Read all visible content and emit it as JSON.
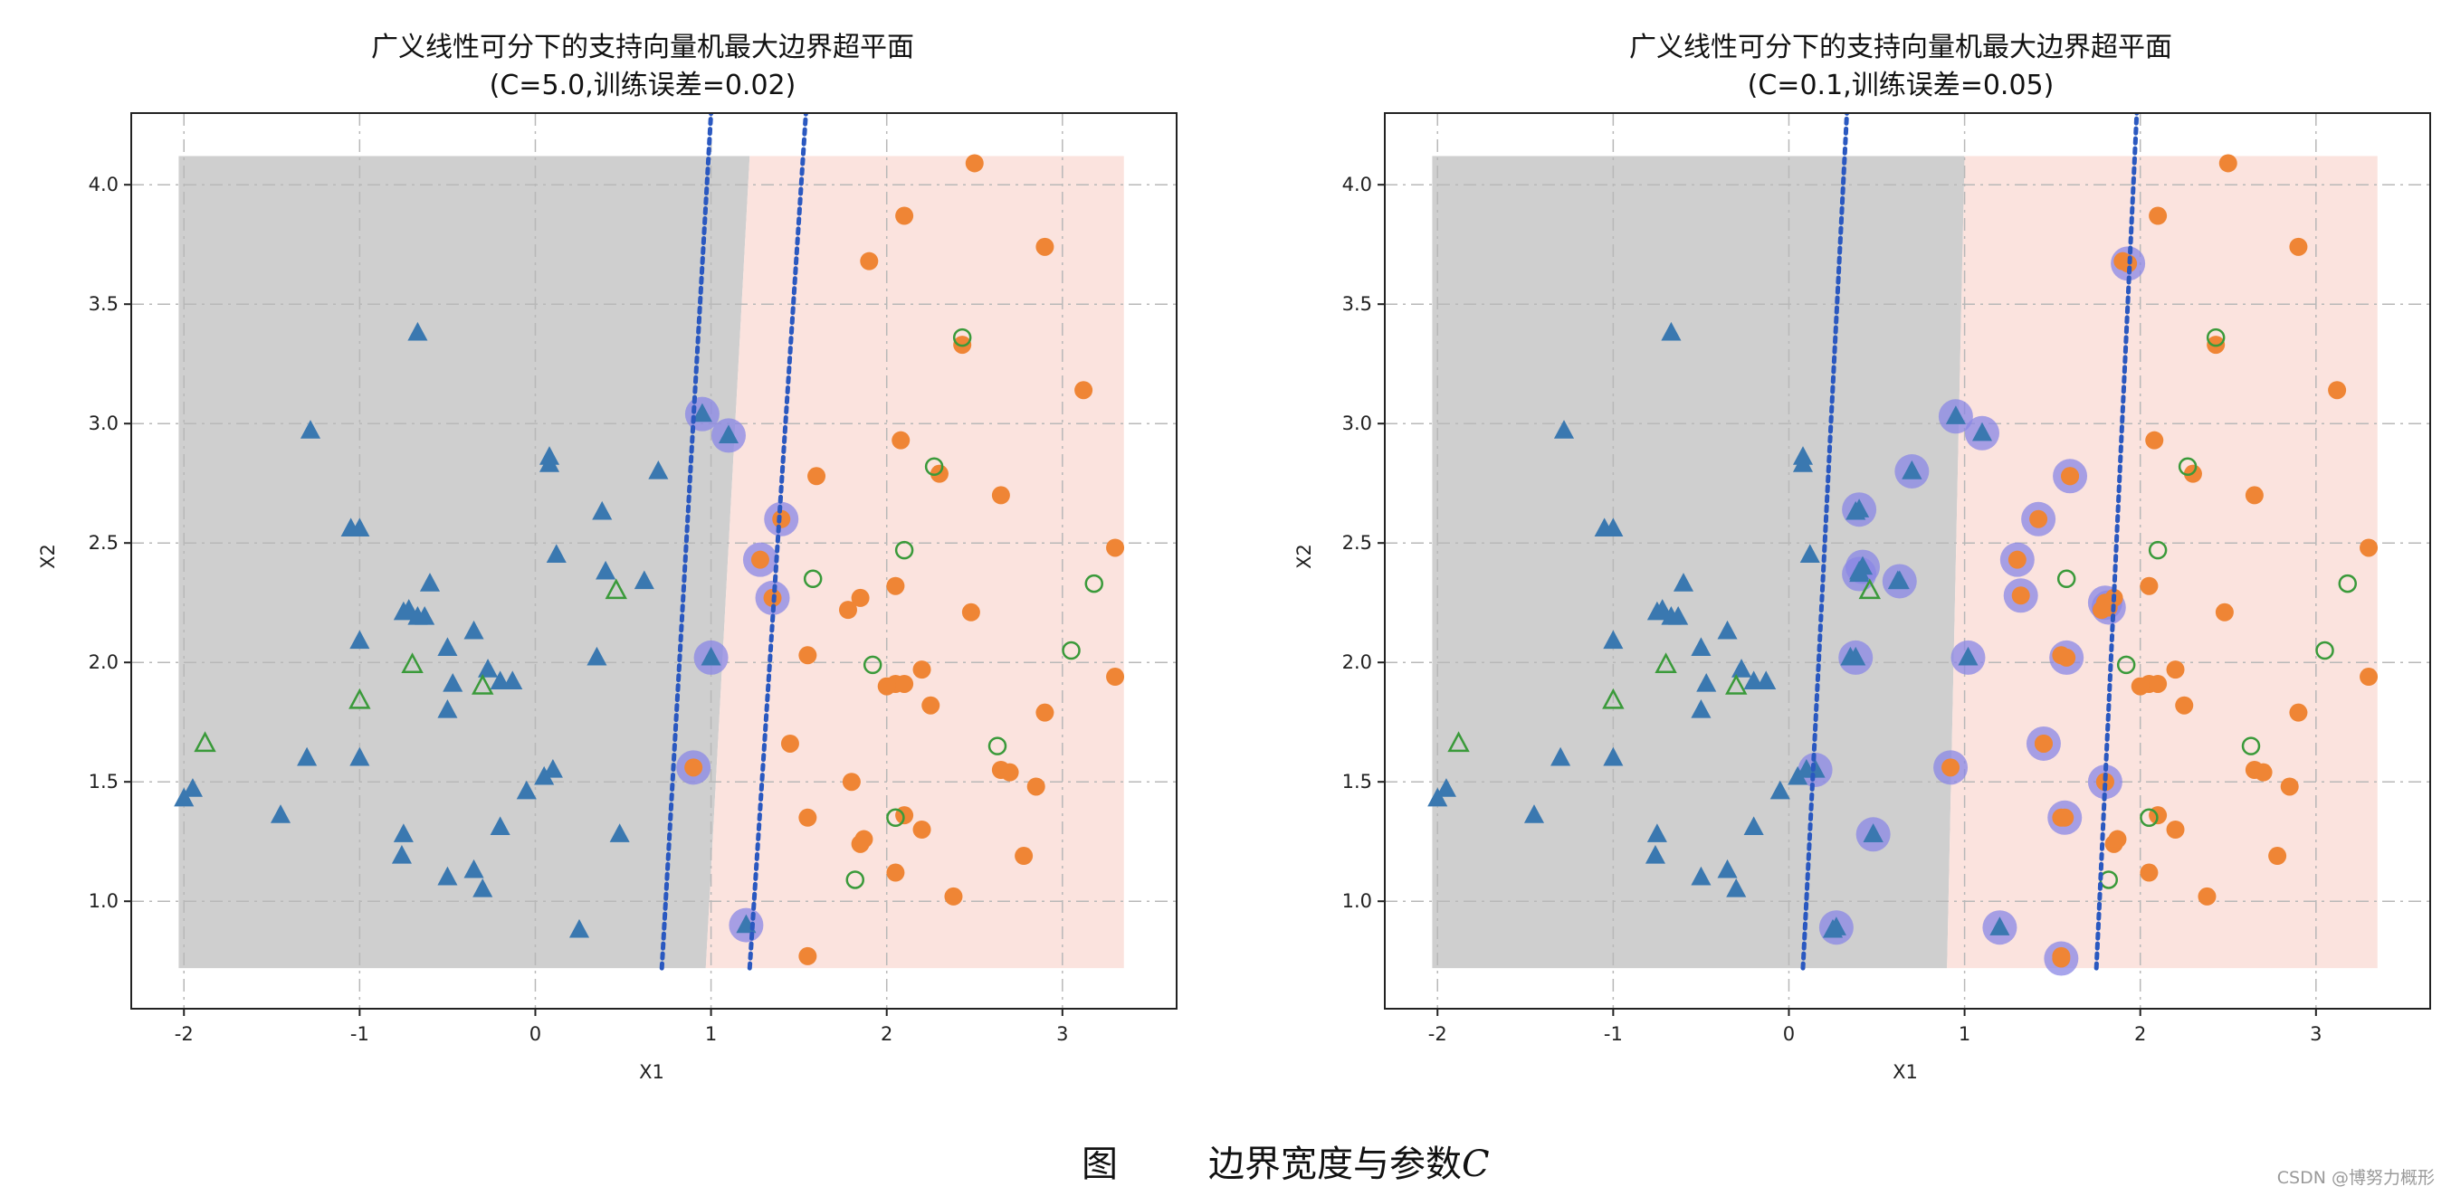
{
  "caption": {
    "label": "图",
    "text": "边界宽度与参数",
    "param": "C"
  },
  "watermark": "CSDN @博努力概形",
  "colors": {
    "class_neg_region": "#cfcfcf",
    "class_pos_region": "#fbe3de",
    "triangle": "#3a78b0",
    "circle": "#ef8535",
    "misclassified": "#3a9a3a",
    "support_halo": "#8a87e6",
    "margin_line": "#2a58c0",
    "grid": "#b8b8b8"
  },
  "chart_data": [
    {
      "type": "scatter",
      "title": "广义线性可分下的支持向量机最大边界超平面",
      "subtitle": "(C=5.0,训练误差=0.02)",
      "xlabel": "X1",
      "ylabel": "X2",
      "xlim": [
        -2.3,
        3.65
      ],
      "ylim": [
        0.55,
        4.3
      ],
      "xticks": [
        -2,
        -1,
        0,
        1,
        2,
        3
      ],
      "yticks": [
        1.0,
        1.5,
        2.0,
        2.5,
        3.0,
        3.5,
        4.0
      ],
      "grid": true,
      "region_bounds": {
        "x": [
          -2.03,
          3.35
        ],
        "y": [
          0.72,
          4.12
        ]
      },
      "decision_boundary": [
        [
          0.97,
          0.72
        ],
        [
          1.22,
          4.12
        ]
      ],
      "margin_lines": [
        [
          [
            0.72,
            0.72
          ],
          [
            1.0,
            4.3
          ]
        ],
        [
          [
            1.22,
            0.72
          ],
          [
            1.54,
            4.3
          ]
        ]
      ],
      "triangles": [
        [
          -2.0,
          1.43
        ],
        [
          -1.95,
          1.47
        ],
        [
          -1.45,
          1.36
        ],
        [
          -1.28,
          2.97
        ],
        [
          -1.3,
          1.6
        ],
        [
          -1.05,
          2.56
        ],
        [
          -1.0,
          2.56
        ],
        [
          -1.0,
          2.09
        ],
        [
          -1.0,
          1.6
        ],
        [
          -0.75,
          2.21
        ],
        [
          -0.72,
          2.22
        ],
        [
          -0.67,
          2.19
        ],
        [
          -0.63,
          2.19
        ],
        [
          -0.6,
          2.33
        ],
        [
          -0.67,
          3.38
        ],
        [
          -0.5,
          2.06
        ],
        [
          -0.47,
          1.91
        ],
        [
          -0.5,
          1.8
        ],
        [
          -0.5,
          1.1
        ],
        [
          -0.35,
          2.13
        ],
        [
          -0.27,
          1.97
        ],
        [
          -0.2,
          1.92
        ],
        [
          -0.13,
          1.92
        ],
        [
          -0.35,
          1.13
        ],
        [
          -0.3,
          1.05
        ],
        [
          -0.2,
          1.31
        ],
        [
          -0.75,
          1.28
        ],
        [
          -0.76,
          1.19
        ],
        [
          -0.05,
          1.46
        ],
        [
          0.05,
          1.52
        ],
        [
          0.08,
          2.86
        ],
        [
          0.08,
          2.83
        ],
        [
          0.12,
          2.45
        ],
        [
          0.1,
          1.55
        ],
        [
          0.25,
          0.88
        ],
        [
          0.38,
          2.63
        ],
        [
          0.4,
          2.38
        ],
        [
          0.35,
          2.02
        ],
        [
          0.62,
          2.34
        ],
        [
          0.7,
          2.8
        ],
        [
          0.48,
          1.28
        ]
      ],
      "circles": [
        [
          2.5,
          4.09
        ],
        [
          2.1,
          3.87
        ],
        [
          1.9,
          3.68
        ],
        [
          2.9,
          3.74
        ],
        [
          2.43,
          3.33
        ],
        [
          3.12,
          3.14
        ],
        [
          2.08,
          2.93
        ],
        [
          2.3,
          2.79
        ],
        [
          1.6,
          2.78
        ],
        [
          2.65,
          2.7
        ],
        [
          3.3,
          2.48
        ],
        [
          1.85,
          2.27
        ],
        [
          1.78,
          2.22
        ],
        [
          2.05,
          2.32
        ],
        [
          2.48,
          2.21
        ],
        [
          1.55,
          2.03
        ],
        [
          2.05,
          1.91
        ],
        [
          2.1,
          1.91
        ],
        [
          2.2,
          1.97
        ],
        [
          2.0,
          1.9
        ],
        [
          2.9,
          1.79
        ],
        [
          2.25,
          1.82
        ],
        [
          1.45,
          1.66
        ],
        [
          1.8,
          1.5
        ],
        [
          2.65,
          1.55
        ],
        [
          2.7,
          1.54
        ],
        [
          2.85,
          1.48
        ],
        [
          1.55,
          1.35
        ],
        [
          2.1,
          1.36
        ],
        [
          2.2,
          1.3
        ],
        [
          1.85,
          1.24
        ],
        [
          1.87,
          1.26
        ],
        [
          2.05,
          1.12
        ],
        [
          2.78,
          1.19
        ],
        [
          2.38,
          1.02
        ],
        [
          1.55,
          0.77
        ],
        [
          3.3,
          1.94
        ]
      ],
      "misclassified_triangles": [
        [
          -1.88,
          1.66
        ],
        [
          -1.0,
          1.84
        ],
        [
          -0.7,
          1.99
        ],
        [
          -0.3,
          1.9
        ],
        [
          0.46,
          2.3
        ]
      ],
      "misclassified_circles": [
        [
          2.43,
          3.36
        ],
        [
          2.27,
          2.82
        ],
        [
          2.1,
          2.47
        ],
        [
          1.58,
          2.35
        ],
        [
          1.92,
          1.99
        ],
        [
          3.18,
          2.33
        ],
        [
          3.05,
          2.05
        ],
        [
          2.63,
          1.65
        ],
        [
          2.05,
          1.35
        ],
        [
          1.82,
          1.09
        ]
      ],
      "support_vectors": [
        [
          0.95,
          3.04,
          "t"
        ],
        [
          1.1,
          2.95,
          "t"
        ],
        [
          1.4,
          2.6,
          "c"
        ],
        [
          1.28,
          2.43,
          "c"
        ],
        [
          1.35,
          2.27,
          "c"
        ],
        [
          1.0,
          2.02,
          "t"
        ],
        [
          0.9,
          1.56,
          "c"
        ],
        [
          1.2,
          0.9,
          "t"
        ]
      ]
    },
    {
      "type": "scatter",
      "title": "广义线性可分下的支持向量机最大边界超平面",
      "subtitle": "(C=0.1,训练误差=0.05)",
      "xlabel": "X1",
      "ylabel": "X2",
      "xlim": [
        -2.3,
        3.65
      ],
      "ylim": [
        0.55,
        4.3
      ],
      "xticks": [
        -2,
        -1,
        0,
        1,
        2,
        3
      ],
      "yticks": [
        1.0,
        1.5,
        2.0,
        2.5,
        3.0,
        3.5,
        4.0
      ],
      "grid": true,
      "region_bounds": {
        "x": [
          -2.03,
          3.35
        ],
        "y": [
          0.72,
          4.12
        ]
      },
      "decision_boundary": [
        [
          0.9,
          0.72
        ],
        [
          1.0,
          4.12
        ]
      ],
      "margin_lines": [
        [
          [
            0.08,
            0.72
          ],
          [
            0.33,
            4.3
          ]
        ],
        [
          [
            1.75,
            0.72
          ],
          [
            1.98,
            4.3
          ]
        ]
      ],
      "triangles": [
        [
          -2.0,
          1.43
        ],
        [
          -1.95,
          1.47
        ],
        [
          -1.45,
          1.36
        ],
        [
          -1.28,
          2.97
        ],
        [
          -1.3,
          1.6
        ],
        [
          -1.05,
          2.56
        ],
        [
          -1.0,
          2.56
        ],
        [
          -1.0,
          2.09
        ],
        [
          -1.0,
          1.6
        ],
        [
          -0.75,
          2.21
        ],
        [
          -0.72,
          2.22
        ],
        [
          -0.67,
          2.19
        ],
        [
          -0.63,
          2.19
        ],
        [
          -0.6,
          2.33
        ],
        [
          -0.67,
          3.38
        ],
        [
          -0.5,
          2.06
        ],
        [
          -0.47,
          1.91
        ],
        [
          -0.5,
          1.8
        ],
        [
          -0.5,
          1.1
        ],
        [
          -0.35,
          2.13
        ],
        [
          -0.27,
          1.97
        ],
        [
          -0.2,
          1.92
        ],
        [
          -0.13,
          1.92
        ],
        [
          -0.35,
          1.13
        ],
        [
          -0.3,
          1.05
        ],
        [
          -0.2,
          1.31
        ],
        [
          -0.75,
          1.28
        ],
        [
          -0.76,
          1.19
        ],
        [
          -0.05,
          1.46
        ],
        [
          0.05,
          1.52
        ],
        [
          0.08,
          2.86
        ],
        [
          0.08,
          2.83
        ],
        [
          0.12,
          2.45
        ],
        [
          0.1,
          1.55
        ],
        [
          0.25,
          0.88
        ],
        [
          0.38,
          2.63
        ],
        [
          0.4,
          2.38
        ],
        [
          0.35,
          2.02
        ],
        [
          0.62,
          2.34
        ],
        [
          0.7,
          2.8
        ],
        [
          0.48,
          1.28
        ]
      ],
      "circles": [
        [
          2.5,
          4.09
        ],
        [
          2.1,
          3.87
        ],
        [
          1.9,
          3.68
        ],
        [
          2.9,
          3.74
        ],
        [
          2.43,
          3.33
        ],
        [
          3.12,
          3.14
        ],
        [
          2.08,
          2.93
        ],
        [
          2.3,
          2.79
        ],
        [
          1.6,
          2.78
        ],
        [
          2.65,
          2.7
        ],
        [
          3.3,
          2.48
        ],
        [
          1.85,
          2.27
        ],
        [
          1.78,
          2.22
        ],
        [
          2.05,
          2.32
        ],
        [
          2.48,
          2.21
        ],
        [
          1.55,
          2.03
        ],
        [
          2.05,
          1.91
        ],
        [
          2.1,
          1.91
        ],
        [
          2.2,
          1.97
        ],
        [
          2.0,
          1.9
        ],
        [
          2.9,
          1.79
        ],
        [
          2.25,
          1.82
        ],
        [
          1.45,
          1.66
        ],
        [
          1.8,
          1.5
        ],
        [
          2.65,
          1.55
        ],
        [
          2.7,
          1.54
        ],
        [
          2.85,
          1.48
        ],
        [
          1.55,
          1.35
        ],
        [
          2.1,
          1.36
        ],
        [
          2.2,
          1.3
        ],
        [
          1.85,
          1.24
        ],
        [
          1.87,
          1.26
        ],
        [
          2.05,
          1.12
        ],
        [
          2.78,
          1.19
        ],
        [
          2.38,
          1.02
        ],
        [
          1.55,
          0.77
        ],
        [
          3.3,
          1.94
        ]
      ],
      "misclassified_triangles": [
        [
          -1.88,
          1.66
        ],
        [
          -1.0,
          1.84
        ],
        [
          -0.7,
          1.99
        ],
        [
          -0.3,
          1.9
        ],
        [
          0.46,
          2.3
        ]
      ],
      "misclassified_circles": [
        [
          2.43,
          3.36
        ],
        [
          2.27,
          2.82
        ],
        [
          2.1,
          2.47
        ],
        [
          1.58,
          2.35
        ],
        [
          1.92,
          1.99
        ],
        [
          3.18,
          2.33
        ],
        [
          3.05,
          2.05
        ],
        [
          2.63,
          1.65
        ],
        [
          2.05,
          1.35
        ],
        [
          1.82,
          1.09
        ]
      ],
      "support_vectors": [
        [
          0.95,
          3.03,
          "t"
        ],
        [
          1.1,
          2.96,
          "t"
        ],
        [
          0.7,
          2.8,
          "t"
        ],
        [
          0.4,
          2.64,
          "t"
        ],
        [
          0.42,
          2.4,
          "t"
        ],
        [
          0.4,
          2.37,
          "t"
        ],
        [
          0.63,
          2.34,
          "t"
        ],
        [
          0.38,
          2.02,
          "t"
        ],
        [
          1.02,
          2.02,
          "t"
        ],
        [
          0.15,
          1.55,
          "t"
        ],
        [
          0.48,
          1.28,
          "t"
        ],
        [
          0.27,
          0.89,
          "t"
        ],
        [
          1.2,
          0.89,
          "t"
        ],
        [
          0.92,
          1.56,
          "c"
        ],
        [
          1.42,
          2.6,
          "c"
        ],
        [
          1.3,
          2.43,
          "c"
        ],
        [
          1.32,
          2.28,
          "c"
        ],
        [
          1.6,
          2.78,
          "c"
        ],
        [
          1.93,
          3.67,
          "c"
        ],
        [
          1.8,
          2.25,
          "c"
        ],
        [
          1.82,
          2.23,
          "c"
        ],
        [
          1.58,
          2.02,
          "c"
        ],
        [
          1.45,
          1.66,
          "c"
        ],
        [
          1.8,
          1.5,
          "c"
        ],
        [
          1.57,
          1.35,
          "c"
        ],
        [
          1.55,
          0.76,
          "c"
        ]
      ]
    }
  ]
}
